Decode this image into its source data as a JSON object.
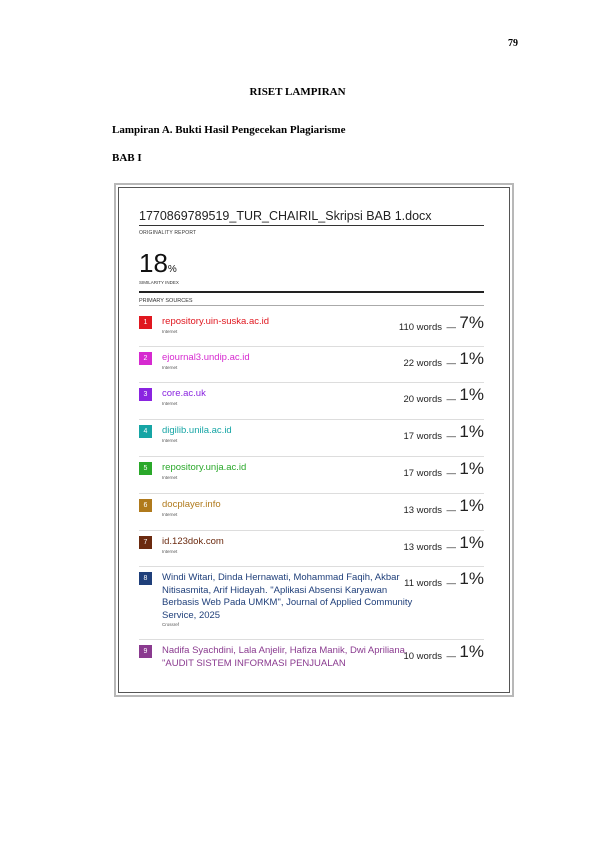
{
  "page_number": "79",
  "heading": "RISET LAMPIRAN",
  "subheading": "Lampiran A. Bukti Hasil Pengecekan Plagiarisme",
  "section": "BAB I",
  "report": {
    "doc_title": "1770869789519_TUR_CHAIRIL_Skripsi BAB 1.docx",
    "originality_label": "ORIGINALITY REPORT",
    "similarity_value": "18",
    "similarity_unit": "%",
    "similarity_label": "SIMILARITY INDEX",
    "primary_sources_label": "PRIMARY SOURCES",
    "dash": "—",
    "sources": [
      {
        "num": "1",
        "name": "repository.uin-suska.ac.id",
        "type": "Internet",
        "words": "110 words",
        "pct": "7%",
        "color": "#e0171f"
      },
      {
        "num": "2",
        "name": "ejournal3.undip.ac.id",
        "type": "Internet",
        "words": "22 words",
        "pct": "1%",
        "color": "#d62ad0"
      },
      {
        "num": "3",
        "name": "core.ac.uk",
        "type": "Internet",
        "words": "20 words",
        "pct": "1%",
        "color": "#8a24e0"
      },
      {
        "num": "4",
        "name": "digilib.unila.ac.id",
        "type": "Internet",
        "words": "17 words",
        "pct": "1%",
        "color": "#16a5a5"
      },
      {
        "num": "5",
        "name": "repository.unja.ac.id",
        "type": "Internet",
        "words": "17 words",
        "pct": "1%",
        "color": "#2aa82a"
      },
      {
        "num": "6",
        "name": "docplayer.info",
        "type": "Internet",
        "words": "13 words",
        "pct": "1%",
        "color": "#b07a1c"
      },
      {
        "num": "7",
        "name": "id.123dok.com",
        "type": "Internet",
        "words": "13 words",
        "pct": "1%",
        "color": "#6b2a0f"
      },
      {
        "num": "8",
        "name": "Windi Witari, Dinda Hernawati, Mohammad Faqih, Akbar Nitisasmita, Arif Hidayah. \"Aplikasi Absensi Karyawan Berbasis Web Pada UMKM\", Journal of Applied Community Service, 2025",
        "type": "Crossref",
        "words": "11 words",
        "pct": "1%",
        "color": "#1f3f7a"
      },
      {
        "num": "9",
        "name": "Nadifa Syachdini, Lala Anjelir, Hafiza Manik, Dwi Apriliana. \"AUDIT SISTEM INFORMASI PENJUALAN",
        "type": "",
        "words": "10 words",
        "pct": "1%",
        "color": "#8a3a8f"
      }
    ]
  }
}
